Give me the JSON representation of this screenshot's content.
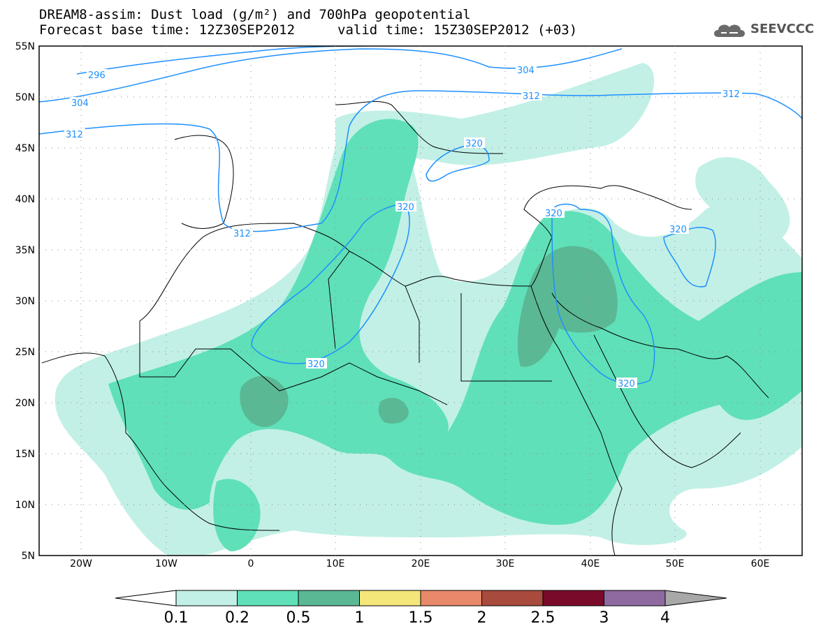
{
  "title_line1": "DREAM8-assim: Dust load (g/m²) and 700hPa geopotential",
  "title_line2_base": "Forecast base time: 12Z30SEP2012",
  "title_line2_valid": "valid time: 15Z30SEP2012 (+03)",
  "logo": {
    "text": "SEEVCCC",
    "icon": "cloud-icon"
  },
  "axes": {
    "lat_ticks": [
      "55N",
      "50N",
      "45N",
      "40N",
      "35N",
      "30N",
      "25N",
      "20N",
      "15N",
      "10N",
      "5N"
    ],
    "lon_ticks": [
      "20W",
      "10W",
      "0",
      "10E",
      "20E",
      "30E",
      "40E",
      "50E",
      "60E"
    ]
  },
  "contour_labels": [
    "296",
    "304",
    "312",
    "304",
    "312",
    "312",
    "312",
    "320",
    "320",
    "320",
    "320",
    "320",
    "320"
  ],
  "colorbar": {
    "labels": [
      "0.1",
      "0.2",
      "0.5",
      "1",
      "1.5",
      "2",
      "2.5",
      "3",
      "4"
    ],
    "colors": [
      "#c2f0e6",
      "#5fe0b8",
      "#5bb894",
      "#f5e67a",
      "#e8896a",
      "#a84a3c",
      "#7a0a2a",
      "#8e6aa0",
      "#a8a8a8"
    ]
  }
}
